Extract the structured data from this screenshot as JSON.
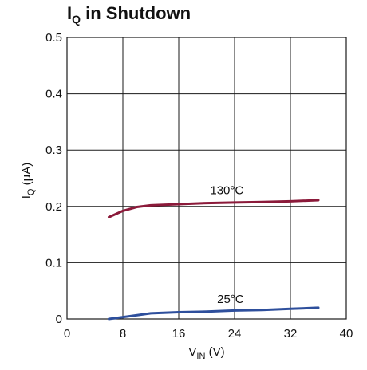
{
  "chart_data": {
    "type": "line",
    "title": {
      "main": "I",
      "sub": "Q",
      "rest": " in Shutdown"
    },
    "xlabel": {
      "main": "V",
      "sub": "IN",
      "rest": " (V)"
    },
    "ylabel": {
      "main": "I",
      "sub": "Q",
      "rest": " (µA)"
    },
    "xlim": [
      0,
      40
    ],
    "ylim": [
      0,
      0.5
    ],
    "x_ticks": [
      0,
      8,
      16,
      24,
      32,
      40
    ],
    "y_ticks": [
      0,
      0.1,
      0.2,
      0.3,
      0.4,
      0.5
    ],
    "x_tick_labels": [
      "0",
      "8",
      "16",
      "24",
      "32",
      "40"
    ],
    "y_tick_labels": [
      "0",
      "0.1",
      "0.2",
      "0.3",
      "0.4",
      "0.5"
    ],
    "grid": true,
    "series": [
      {
        "name": "130°C",
        "color": "#8b1a3a",
        "label_at": [
          20.5,
          0.222
        ],
        "points": [
          [
            6,
            0.181
          ],
          [
            8,
            0.192
          ],
          [
            10,
            0.199
          ],
          [
            12,
            0.202
          ],
          [
            16,
            0.204
          ],
          [
            20,
            0.206
          ],
          [
            24,
            0.207
          ],
          [
            28,
            0.208
          ],
          [
            32,
            0.209
          ],
          [
            36,
            0.211
          ]
        ]
      },
      {
        "name": "25°C",
        "color": "#2e4f9c",
        "label_at": [
          21.5,
          0.028
        ],
        "points": [
          [
            6,
            0.0
          ],
          [
            9,
            0.005
          ],
          [
            12,
            0.01
          ],
          [
            16,
            0.012
          ],
          [
            20,
            0.013
          ],
          [
            24,
            0.015
          ],
          [
            28,
            0.016
          ],
          [
            32,
            0.018
          ],
          [
            36,
            0.02
          ]
        ]
      }
    ]
  }
}
